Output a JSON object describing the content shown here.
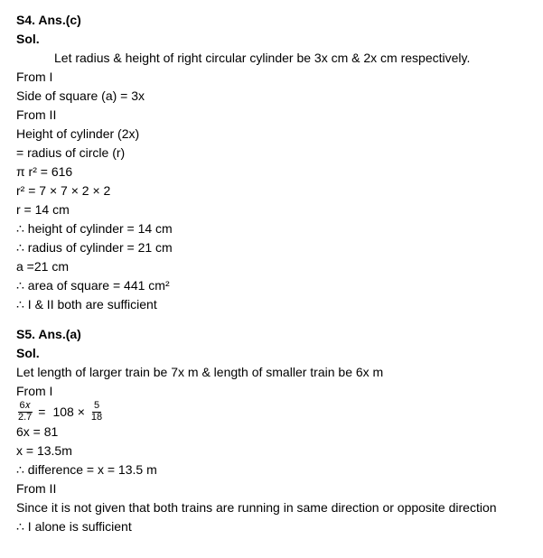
{
  "s4": {
    "heading": "S4. Ans.(c)",
    "sol_label": "Sol.",
    "intro": "Let radius & height of right circular cylinder be 3x cm & 2x cm respectively.",
    "lines": [
      "From I",
      "Side of square (a) = 3x",
      "From II",
      "Height of cylinder (2x)",
      "= radius of circle (r)",
      "π r² = 616",
      "r² = 7 × 7 × 2 × 2",
      "r = 14 cm",
      "∴ height of cylinder = 14 cm",
      "∴ radius of cylinder = 21 cm",
      "a =21 cm",
      "∴ area of square = 441 cm²",
      "∴  I & II both are sufficient"
    ]
  },
  "s5": {
    "heading": "S5. Ans.(a)",
    "sol_label": "Sol.",
    "intro": "Let length of larger train be 7x m & length of smaller train be 6x m",
    "from1": "From I",
    "frac": {
      "left_num": "6𝑥",
      "left_den": "2.7",
      "eq": "=",
      "mid": "108 ×",
      "right_num": "5",
      "right_den": "18"
    },
    "lines_after": [
      "6x = 81",
      "x = 13.5m",
      "∴ difference = x = 13.5 m",
      "From II",
      "Since it is not given that both trains are running in same direction or opposite direction",
      "∴ I alone is sufficient"
    ]
  }
}
